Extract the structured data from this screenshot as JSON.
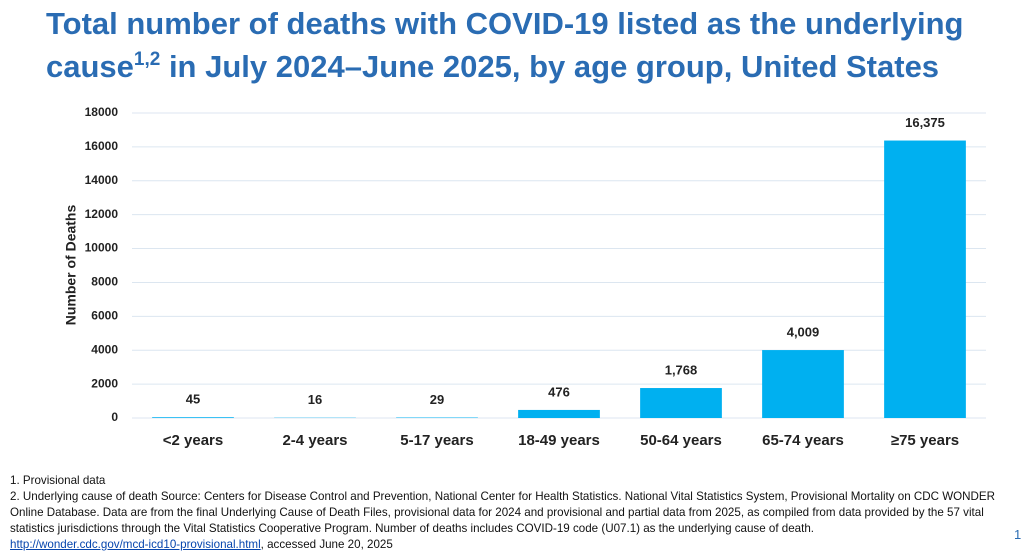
{
  "chart_data": {
    "type": "bar",
    "title_parts": [
      "Total number of deaths with COVID-19 listed as the underlying cause",
      "1,2",
      " in July 2024–June 2025, by age group, United States"
    ],
    "y_label": "Number of Deaths",
    "categories": [
      "<2 years",
      "2-4 years",
      "5-17 years",
      "18-49 years",
      "50-64 years",
      "65-74 years",
      "≥75 years"
    ],
    "values": [
      45,
      16,
      29,
      476,
      1768,
      4009,
      16375
    ],
    "value_labels": [
      "45",
      "16",
      "29",
      "476",
      "1,768",
      "4,009",
      "16,375"
    ],
    "color": "#00b0f0",
    "ylim": [
      0,
      18000
    ],
    "yticks": [
      0,
      2000,
      4000,
      6000,
      8000,
      10000,
      12000,
      14000,
      16000,
      18000
    ],
    "grid": true
  },
  "footnotes": [
    "1. Provisional data",
    "2. Underlying cause of death Source: Centers for Disease Control and Prevention, National Center for Health Statistics. National Vital Statistics System, Provisional Mortality on CDC WONDER Online Database. Data are from the final Underlying Cause of Death Files, provisional data for 2024 and provisional and partial data from 2025, as compiled from data provided by the 57 vital statistics jurisdictions through the Vital Statistics Cooperative Program. Number of deaths includes COVID-19 code (U07.1) as the underlying cause of death."
  ],
  "source_link": "http://wonder.cdc.gov/mcd-icd10-provisional.html",
  "source_accessed": ", accessed June 20, 2025",
  "page_number": "1"
}
